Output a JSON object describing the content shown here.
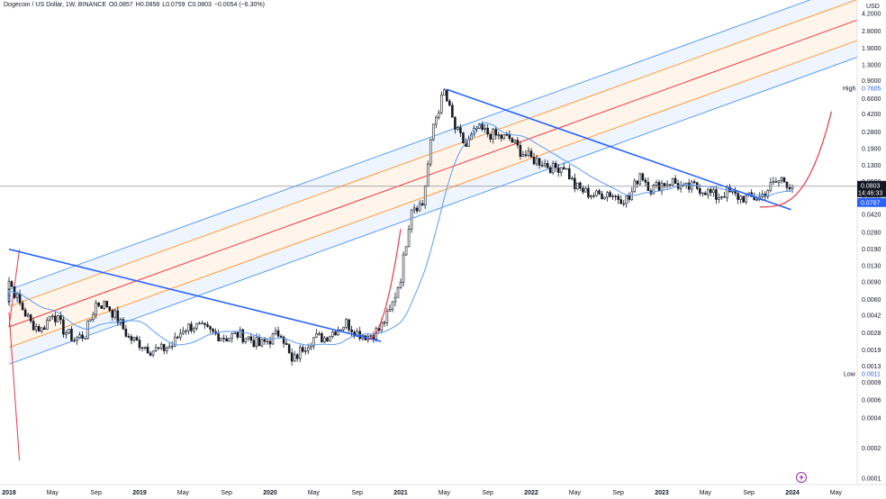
{
  "legend": {
    "symbol": "Dogecoin / US Dollar, 1W, BINANCE",
    "open": "O0.0857",
    "high": "H0.0858",
    "low": "L0.0759",
    "close": "C0.0803",
    "change": "−0.0054 (−6.30%)"
  },
  "currency_label": "USD",
  "price_ticks": [
    "4.2000",
    "2.8000",
    "1.9000",
    "1.3000",
    "0.9000",
    "0.6000",
    "0.4200",
    "0.2800",
    "0.1900",
    "0.1300",
    "0.0900",
    "0.0600",
    "0.0420",
    "0.0280",
    "0.0190",
    "0.0130",
    "0.0090",
    "0.0060",
    "0.0042",
    "0.0028",
    "0.0019",
    "0.0013",
    "0.0009",
    "0.0006",
    "0.0004",
    "0.0002",
    "0.0001"
  ],
  "time_ticks": [
    "2018",
    "May",
    "Sep",
    "2019",
    "May",
    "Sep",
    "2020",
    "May",
    "Sep",
    "2021",
    "May",
    "Sep",
    "2022",
    "May",
    "Sep",
    "2023",
    "May",
    "Sep",
    "2024",
    "May"
  ],
  "markers": {
    "high_label": "High",
    "high_value": "0.7605",
    "low_label": "Low",
    "low_value": "0.0011",
    "last_price": "0.0803",
    "countdown": "14:46:33",
    "ma_value": "0.0787"
  },
  "colors": {
    "up": "#ffffff",
    "down": "#131722",
    "wick": "#131722",
    "channel_outer": "#5b9cf6",
    "channel_orange": "#ff9a3c",
    "channel_mid": "#f23645",
    "trendline": "#2962ff",
    "ma": "#5b9cf6",
    "curve": "#f23645",
    "last_price_bg": "#131722",
    "ma_tag_bg": "#2962ff"
  },
  "chart_data": {
    "type": "candlestick",
    "scale": "log",
    "y_range": [
      0.0001,
      4.2
    ],
    "x_range": [
      "2018-01",
      "2024-06"
    ],
    "interval": "1W",
    "series": [
      {
        "name": "Dogecoin / US Dollar",
        "points": [
          [
            "2018-01",
            0.0058
          ],
          [
            "2018-01",
            0.0092
          ],
          [
            "2018-02",
            0.0054
          ],
          [
            "2018-03",
            0.0035
          ],
          [
            "2018-04",
            0.003
          ],
          [
            "2018-05",
            0.0045
          ],
          [
            "2018-06",
            0.003
          ],
          [
            "2018-07",
            0.0024
          ],
          [
            "2018-08",
            0.0027
          ],
          [
            "2018-09",
            0.0055
          ],
          [
            "2018-10",
            0.0053
          ],
          [
            "2018-11",
            0.0038
          ],
          [
            "2018-12",
            0.0025
          ],
          [
            "2019-01",
            0.0022
          ],
          [
            "2019-02",
            0.0019
          ],
          [
            "2019-03",
            0.0019
          ],
          [
            "2019-04",
            0.0021
          ],
          [
            "2019-05",
            0.0031
          ],
          [
            "2019-06",
            0.0033
          ],
          [
            "2019-07",
            0.003
          ],
          [
            "2019-08",
            0.0027
          ],
          [
            "2019-09",
            0.0025
          ],
          [
            "2019-10",
            0.0027
          ],
          [
            "2019-11",
            0.0025
          ],
          [
            "2019-12",
            0.0021
          ],
          [
            "2020-01",
            0.0024
          ],
          [
            "2020-02",
            0.0029
          ],
          [
            "2020-03",
            0.0014
          ],
          [
            "2020-04",
            0.002
          ],
          [
            "2020-05",
            0.0025
          ],
          [
            "2020-06",
            0.0025
          ],
          [
            "2020-07",
            0.003
          ],
          [
            "2020-08",
            0.0035
          ],
          [
            "2020-09",
            0.0028
          ],
          [
            "2020-10",
            0.0026
          ],
          [
            "2020-11",
            0.003
          ],
          [
            "2020-12",
            0.0045
          ],
          [
            "2021-01",
            0.01
          ],
          [
            "2021-02",
            0.051
          ],
          [
            "2021-03",
            0.053
          ],
          [
            "2021-04",
            0.33
          ],
          [
            "2021-05",
            0.7
          ],
          [
            "2021-06",
            0.3
          ],
          [
            "2021-07",
            0.2
          ],
          [
            "2021-08",
            0.3
          ],
          [
            "2021-09",
            0.27
          ],
          [
            "2021-10",
            0.25
          ],
          [
            "2021-11",
            0.24
          ],
          [
            "2021-12",
            0.18
          ],
          [
            "2022-01",
            0.15
          ],
          [
            "2022-02",
            0.14
          ],
          [
            "2022-03",
            0.12
          ],
          [
            "2022-04",
            0.13
          ],
          [
            "2022-05",
            0.08
          ],
          [
            "2022-06",
            0.07
          ],
          [
            "2022-07",
            0.065
          ],
          [
            "2022-08",
            0.07
          ],
          [
            "2022-09",
            0.062
          ],
          [
            "2022-10",
            0.06
          ],
          [
            "2022-11",
            0.11
          ],
          [
            "2022-12",
            0.075
          ],
          [
            "2023-01",
            0.085
          ],
          [
            "2023-02",
            0.09
          ],
          [
            "2023-03",
            0.075
          ],
          [
            "2023-04",
            0.08
          ],
          [
            "2023-05",
            0.073
          ],
          [
            "2023-06",
            0.063
          ],
          [
            "2023-07",
            0.07
          ],
          [
            "2023-08",
            0.063
          ],
          [
            "2023-09",
            0.061
          ],
          [
            "2023-10",
            0.062
          ],
          [
            "2023-11",
            0.08
          ],
          [
            "2023-12",
            0.095
          ],
          [
            "2024-01",
            0.0803
          ]
        ]
      }
    ],
    "annotations": {
      "outer_channel": {
        "anchor_2018": 0.0032,
        "slope_per_year_log10": 0.47,
        "offset_log10": 0.37
      },
      "high": 0.7605,
      "low": 0.0011
    },
    "grid": false,
    "legend": "top-left"
  }
}
